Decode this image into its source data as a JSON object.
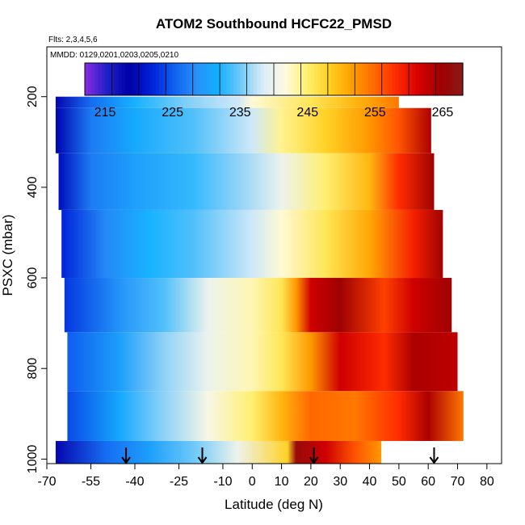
{
  "chart_data": {
    "type": "heatmap",
    "title": "ATOM2 Southbound HCFC22_PMSD",
    "flights_note": "Flts: 2,3,4,5,6",
    "dates_note": "MMDD: 0129,0201,0203,0205,0210",
    "xlabel": "Latitude (deg N)",
    "ylabel": "PSXC (mbar)",
    "xlim": [
      -70,
      85
    ],
    "ylim": [
      1010,
      90
    ],
    "x_ticks": [
      -70,
      -55,
      -40,
      -25,
      -10,
      0,
      10,
      20,
      30,
      40,
      50,
      60,
      70,
      80
    ],
    "y_ticks": [
      200,
      400,
      600,
      800,
      1000
    ],
    "colorbar": {
      "range": [
        212,
        268
      ],
      "ticks": [
        215,
        225,
        235,
        245,
        255,
        265
      ],
      "colors": [
        "#8a2be2",
        "#2020c8",
        "#0000a8",
        "#0020d8",
        "#1060f0",
        "#2890f8",
        "#10b0ff",
        "#70c8f8",
        "#d8ecf8",
        "#fffae0",
        "#fff070",
        "#ffd020",
        "#ffa000",
        "#ff6a00",
        "#ff2a00",
        "#d80000",
        "#a00000",
        "#8b1a1a"
      ]
    },
    "field_bands": [
      {
        "pressure": [
          200,
          225
        ],
        "lat": [
          -67,
          50
        ],
        "profile": [
          [
            -67,
            218
          ],
          [
            -55,
            226
          ],
          [
            -40,
            232
          ],
          [
            -20,
            236
          ],
          [
            -5,
            238
          ],
          [
            0,
            242
          ],
          [
            20,
            246
          ],
          [
            35,
            250
          ],
          [
            50,
            254
          ]
        ]
      },
      {
        "pressure": [
          225,
          325
        ],
        "lat": [
          -67,
          61
        ],
        "profile": [
          [
            -67,
            219
          ],
          [
            -55,
            227
          ],
          [
            -40,
            231
          ],
          [
            -20,
            234
          ],
          [
            0,
            238
          ],
          [
            10,
            244
          ],
          [
            25,
            248
          ],
          [
            40,
            252
          ],
          [
            50,
            256
          ],
          [
            61,
            264
          ]
        ]
      },
      {
        "pressure": [
          325,
          450
        ],
        "lat": [
          -66,
          62
        ],
        "profile": [
          [
            -66,
            220
          ],
          [
            -55,
            227
          ],
          [
            -40,
            230
          ],
          [
            -20,
            233
          ],
          [
            -5,
            236
          ],
          [
            10,
            240
          ],
          [
            25,
            245
          ],
          [
            40,
            250
          ],
          [
            50,
            258
          ],
          [
            62,
            265
          ]
        ]
      },
      {
        "pressure": [
          450,
          600
        ],
        "lat": [
          -65,
          65
        ],
        "profile": [
          [
            -65,
            222
          ],
          [
            -50,
            228
          ],
          [
            -35,
            232
          ],
          [
            -20,
            234
          ],
          [
            0,
            238
          ],
          [
            10,
            242
          ],
          [
            25,
            246
          ],
          [
            40,
            251
          ],
          [
            55,
            259
          ],
          [
            65,
            265
          ]
        ]
      },
      {
        "pressure": [
          600,
          720
        ],
        "lat": [
          -64,
          68
        ],
        "profile": [
          [
            -64,
            223
          ],
          [
            -45,
            229
          ],
          [
            -30,
            234
          ],
          [
            -15,
            240
          ],
          [
            0,
            243
          ],
          [
            10,
            246
          ],
          [
            15,
            252
          ],
          [
            20,
            262
          ],
          [
            30,
            265
          ],
          [
            45,
            257
          ],
          [
            55,
            262
          ],
          [
            68,
            265
          ]
        ]
      },
      {
        "pressure": [
          720,
          850
        ],
        "lat": [
          -63,
          70
        ],
        "profile": [
          [
            -63,
            225
          ],
          [
            -45,
            230
          ],
          [
            -30,
            236
          ],
          [
            -15,
            240
          ],
          [
            0,
            243
          ],
          [
            10,
            246
          ],
          [
            20,
            252
          ],
          [
            30,
            262
          ],
          [
            45,
            258
          ],
          [
            55,
            264
          ],
          [
            70,
            263
          ]
        ]
      },
      {
        "pressure": [
          850,
          960
        ],
        "lat": [
          -63,
          72
        ],
        "profile": [
          [
            -63,
            224
          ],
          [
            -45,
            231
          ],
          [
            -30,
            236
          ],
          [
            -15,
            241
          ],
          [
            0,
            245
          ],
          [
            10,
            250
          ],
          [
            20,
            255
          ],
          [
            35,
            254
          ],
          [
            50,
            258
          ],
          [
            60,
            264
          ],
          [
            72,
            254
          ]
        ]
      },
      {
        "pressure": [
          960,
          1010
        ],
        "lat": [
          -67,
          44
        ],
        "profile": [
          [
            -67,
            218
          ],
          [
            -50,
            226
          ],
          [
            -35,
            230
          ],
          [
            -20,
            235
          ],
          [
            -5,
            240
          ],
          [
            12,
            248
          ],
          [
            15,
            266
          ],
          [
            25,
            262
          ],
          [
            35,
            256
          ],
          [
            44,
            252
          ]
        ]
      }
    ],
    "arrow_latitudes": [
      -43,
      -17,
      21,
      62
    ]
  }
}
